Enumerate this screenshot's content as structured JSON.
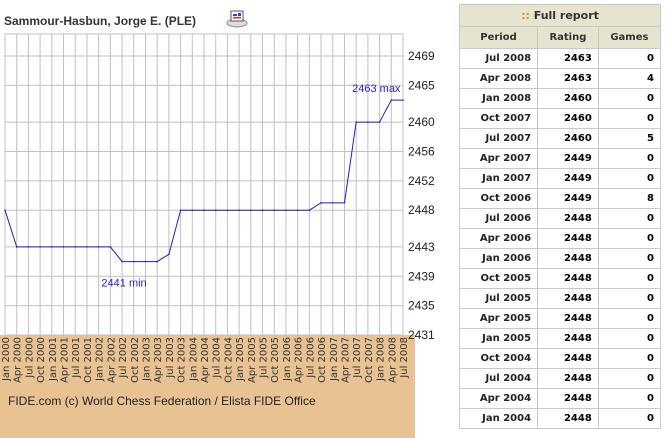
{
  "player": {
    "name": "Sammour-Hasbun, Jorge E. (PLE)"
  },
  "footer": {
    "copyright": "FIDE.com (c) World Chess Federation / Elista FIDE Office"
  },
  "colors": {
    "line": "#1f1fc8",
    "grid": "#c0c0c0",
    "axis_bg": "#e9c293",
    "header_bg": "#e6e4cf"
  },
  "report": {
    "title_prefix": "::",
    "title": "Full report",
    "columns": [
      "Period",
      "Rating",
      "Games"
    ],
    "rows": [
      {
        "period": "Jul 2008",
        "rating": "2463",
        "games": "0"
      },
      {
        "period": "Apr 2008",
        "rating": "2463",
        "games": "4"
      },
      {
        "period": "Jan 2008",
        "rating": "2460",
        "games": "0"
      },
      {
        "period": "Oct 2007",
        "rating": "2460",
        "games": "0"
      },
      {
        "period": "Jul 2007",
        "rating": "2460",
        "games": "5"
      },
      {
        "period": "Apr 2007",
        "rating": "2449",
        "games": "0"
      },
      {
        "period": "Jan 2007",
        "rating": "2449",
        "games": "0"
      },
      {
        "period": "Oct 2006",
        "rating": "2449",
        "games": "8"
      },
      {
        "period": "Jul 2006",
        "rating": "2448",
        "games": "0"
      },
      {
        "period": "Apr 2006",
        "rating": "2448",
        "games": "0"
      },
      {
        "period": "Jan 2006",
        "rating": "2448",
        "games": "0"
      },
      {
        "period": "Oct 2005",
        "rating": "2448",
        "games": "0"
      },
      {
        "period": "Jul 2005",
        "rating": "2448",
        "games": "0"
      },
      {
        "period": "Apr 2005",
        "rating": "2448",
        "games": "0"
      },
      {
        "period": "Jan 2005",
        "rating": "2448",
        "games": "0"
      },
      {
        "period": "Oct 2004",
        "rating": "2448",
        "games": "0"
      },
      {
        "period": "Jul 2004",
        "rating": "2448",
        "games": "0"
      },
      {
        "period": "Apr 2004",
        "rating": "2448",
        "games": "0"
      },
      {
        "period": "Jan 2004",
        "rating": "2448",
        "games": "0"
      }
    ]
  },
  "chart_data": {
    "type": "line",
    "x": [
      "Jan 2000",
      "Apr 2000",
      "Jul 2000",
      "Oct 2000",
      "Jan 2001",
      "Apr 2001",
      "Jul 2001",
      "Oct 2001",
      "Jan 2002",
      "Apr 2002",
      "Jul 2002",
      "Oct 2002",
      "Jan 2003",
      "Apr 2003",
      "Jul 2003",
      "Oct 2003",
      "Jan 2004",
      "Apr 2004",
      "Jul 2004",
      "Oct 2004",
      "Jan 2005",
      "Apr 2005",
      "Jul 2005",
      "Oct 2005",
      "Jan 2006",
      "Apr 2006",
      "Jul 2006",
      "Oct 2006",
      "Jan 2007",
      "Apr 2007",
      "Jul 2007",
      "Oct 2007",
      "Jan 2008",
      "Apr 2008",
      "Jul 2008"
    ],
    "values": [
      2448,
      2443,
      2443,
      2443,
      2443,
      2443,
      2443,
      2443,
      2443,
      2443,
      2441,
      2441,
      2441,
      2441,
      2442,
      2448,
      2448,
      2448,
      2448,
      2448,
      2448,
      2448,
      2448,
      2448,
      2448,
      2448,
      2448,
      2449,
      2449,
      2449,
      2460,
      2460,
      2460,
      2463,
      2463
    ],
    "ylim": [
      2431,
      2472
    ],
    "yticks": [
      2431,
      2435,
      2439,
      2443,
      2448,
      2452,
      2456,
      2460,
      2465,
      2469
    ],
    "annotations": [
      {
        "text": "2463 max",
        "x": "Apr 2008",
        "y": 2463
      },
      {
        "text": "2441 min",
        "x": "Jul 2002",
        "y": 2441
      }
    ],
    "grid": true
  }
}
